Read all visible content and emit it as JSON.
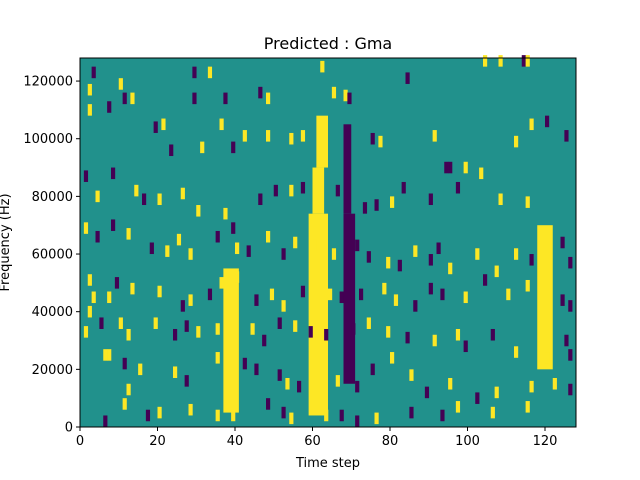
{
  "chart_data": {
    "type": "heatmap",
    "title": "Predicted : Gma",
    "xlabel": "Time step",
    "ylabel": "Frequency (Hz)",
    "xlim": [
      0,
      128
    ],
    "ylim": [
      0,
      128000
    ],
    "xticks": [
      0,
      20,
      40,
      60,
      80,
      100,
      120
    ],
    "yticks": [
      0,
      20000,
      40000,
      60000,
      80000,
      100000,
      120000
    ],
    "ytick_labels": [
      "0",
      "20000",
      "40000",
      "60000",
      "80000",
      "100000",
      "120000"
    ],
    "colormap": "viridis",
    "colors": {
      "background": "#21918c",
      "high": "#fde725",
      "low": "#440154"
    },
    "n_time_steps": 128,
    "n_freq_bins": 128,
    "bands": [
      {
        "x0": 59,
        "x1": 63,
        "y0": 4000,
        "y1": 74000,
        "level": "high"
      },
      {
        "x0": 60,
        "x1": 62,
        "y0": 74000,
        "y1": 90000,
        "level": "high"
      },
      {
        "x0": 61,
        "x1": 63,
        "y0": 90000,
        "y1": 108000,
        "level": "high"
      },
      {
        "x0": 68,
        "x1": 70,
        "y0": 15000,
        "y1": 74000,
        "level": "low"
      },
      {
        "x0": 68,
        "x1": 69,
        "y0": 74000,
        "y1": 105000,
        "level": "low"
      },
      {
        "x0": 37,
        "x1": 40,
        "y0": 5000,
        "y1": 55000,
        "level": "high"
      },
      {
        "x0": 118,
        "x1": 121,
        "y0": 20000,
        "y1": 70000,
        "level": "high"
      }
    ],
    "cells": [
      [
        3,
        123000,
        "low"
      ],
      [
        2,
        117000,
        "high"
      ],
      [
        10,
        119000,
        "high"
      ],
      [
        11,
        114000,
        "low"
      ],
      [
        13,
        114000,
        "high"
      ],
      [
        19,
        104000,
        "low"
      ],
      [
        21,
        105000,
        "high"
      ],
      [
        29,
        123000,
        "low"
      ],
      [
        33,
        123000,
        "high"
      ],
      [
        29,
        114000,
        "low"
      ],
      [
        37,
        114000,
        "low"
      ],
      [
        36,
        105000,
        "high"
      ],
      [
        46,
        116000,
        "low"
      ],
      [
        48,
        114000,
        "high"
      ],
      [
        62,
        125000,
        "high"
      ],
      [
        65,
        116000,
        "high"
      ],
      [
        68,
        115000,
        "high"
      ],
      [
        69,
        114000,
        "low"
      ],
      [
        84,
        121000,
        "low"
      ],
      [
        104,
        127000,
        "high"
      ],
      [
        108,
        127000,
        "high"
      ],
      [
        114,
        127000,
        "low"
      ],
      [
        115,
        127000,
        "high"
      ],
      [
        2,
        110000,
        "high"
      ],
      [
        7,
        111000,
        "low"
      ],
      [
        23,
        96000,
        "low"
      ],
      [
        31,
        97000,
        "high"
      ],
      [
        39,
        97000,
        "low"
      ],
      [
        42,
        101000,
        "high"
      ],
      [
        48,
        101000,
        "high"
      ],
      [
        54,
        100000,
        "high"
      ],
      [
        57,
        101000,
        "high"
      ],
      [
        75,
        100000,
        "low"
      ],
      [
        77,
        99000,
        "high"
      ],
      [
        91,
        101000,
        "high"
      ],
      [
        94,
        90000,
        "low"
      ],
      [
        95,
        90000,
        "low"
      ],
      [
        99,
        90000,
        "high"
      ],
      [
        112,
        99000,
        "high"
      ],
      [
        116,
        105000,
        "high"
      ],
      [
        120,
        106000,
        "low"
      ],
      [
        125,
        101000,
        "low"
      ],
      [
        1,
        87000,
        "low"
      ],
      [
        4,
        80000,
        "high"
      ],
      [
        8,
        88000,
        "low"
      ],
      [
        14,
        82000,
        "high"
      ],
      [
        16,
        79000,
        "low"
      ],
      [
        20,
        79000,
        "high"
      ],
      [
        26,
        81000,
        "high"
      ],
      [
        30,
        75000,
        "high"
      ],
      [
        37,
        74000,
        "high"
      ],
      [
        39,
        69000,
        "low"
      ],
      [
        46,
        79000,
        "low"
      ],
      [
        50,
        82000,
        "low"
      ],
      [
        54,
        82000,
        "high"
      ],
      [
        57,
        83000,
        "low"
      ],
      [
        66,
        82000,
        "low"
      ],
      [
        73,
        76000,
        "low"
      ],
      [
        76,
        77000,
        "low"
      ],
      [
        80,
        78000,
        "high"
      ],
      [
        83,
        83000,
        "low"
      ],
      [
        90,
        79000,
        "low"
      ],
      [
        97,
        83000,
        "low"
      ],
      [
        103,
        88000,
        "high"
      ],
      [
        108,
        79000,
        "high"
      ],
      [
        115,
        78000,
        "high"
      ],
      [
        1,
        69000,
        "high"
      ],
      [
        4,
        66000,
        "low"
      ],
      [
        8,
        70000,
        "low"
      ],
      [
        12,
        67000,
        "high"
      ],
      [
        18,
        62000,
        "low"
      ],
      [
        22,
        61000,
        "high"
      ],
      [
        25,
        65000,
        "high"
      ],
      [
        28,
        60000,
        "high"
      ],
      [
        35,
        66000,
        "low"
      ],
      [
        40,
        62000,
        "high"
      ],
      [
        43,
        61000,
        "low"
      ],
      [
        48,
        66000,
        "high"
      ],
      [
        52,
        60000,
        "low"
      ],
      [
        55,
        64000,
        "high"
      ],
      [
        60,
        63000,
        "high"
      ],
      [
        65,
        60000,
        "high"
      ],
      [
        71,
        63000,
        "low"
      ],
      [
        74,
        59000,
        "low"
      ],
      [
        79,
        57000,
        "high"
      ],
      [
        82,
        56000,
        "low"
      ],
      [
        86,
        61000,
        "high"
      ],
      [
        90,
        58000,
        "low"
      ],
      [
        92,
        62000,
        "low"
      ],
      [
        95,
        55000,
        "high"
      ],
      [
        102,
        60000,
        "high"
      ],
      [
        107,
        54000,
        "high"
      ],
      [
        112,
        60000,
        "high"
      ],
      [
        116,
        58000,
        "low"
      ],
      [
        124,
        64000,
        "low"
      ],
      [
        126,
        57000,
        "low"
      ],
      [
        2,
        51000,
        "high"
      ],
      [
        3,
        45000,
        "high"
      ],
      [
        7,
        45000,
        "high"
      ],
      [
        9,
        50000,
        "low"
      ],
      [
        13,
        48000,
        "high"
      ],
      [
        20,
        47000,
        "high"
      ],
      [
        26,
        42000,
        "low"
      ],
      [
        28,
        44000,
        "high"
      ],
      [
        33,
        46000,
        "low"
      ],
      [
        36,
        50000,
        "high"
      ],
      [
        40,
        52000,
        "high"
      ],
      [
        45,
        44000,
        "low"
      ],
      [
        49,
        46000,
        "high"
      ],
      [
        52,
        42000,
        "high"
      ],
      [
        57,
        47000,
        "low"
      ],
      [
        64,
        46000,
        "high"
      ],
      [
        67,
        45000,
        "low"
      ],
      [
        72,
        46000,
        "low"
      ],
      [
        78,
        48000,
        "high"
      ],
      [
        81,
        44000,
        "high"
      ],
      [
        86,
        42000,
        "low"
      ],
      [
        90,
        48000,
        "low"
      ],
      [
        93,
        46000,
        "low"
      ],
      [
        99,
        45000,
        "high"
      ],
      [
        104,
        51000,
        "low"
      ],
      [
        110,
        46000,
        "high"
      ],
      [
        115,
        49000,
        "high"
      ],
      [
        124,
        44000,
        "low"
      ],
      [
        126,
        42000,
        "low"
      ],
      [
        2,
        40000,
        "high"
      ],
      [
        1,
        33000,
        "high"
      ],
      [
        5,
        36000,
        "low"
      ],
      [
        10,
        36000,
        "high"
      ],
      [
        12,
        32000,
        "high"
      ],
      [
        19,
        36000,
        "high"
      ],
      [
        24,
        32000,
        "low"
      ],
      [
        27,
        35000,
        "low"
      ],
      [
        30,
        33000,
        "high"
      ],
      [
        35,
        34000,
        "high"
      ],
      [
        44,
        34000,
        "high"
      ],
      [
        47,
        30000,
        "low"
      ],
      [
        51,
        36000,
        "low"
      ],
      [
        55,
        35000,
        "high"
      ],
      [
        59,
        33000,
        "low"
      ],
      [
        63,
        32000,
        "low"
      ],
      [
        70,
        34000,
        "low"
      ],
      [
        74,
        36000,
        "high"
      ],
      [
        79,
        33000,
        "high"
      ],
      [
        84,
        31000,
        "low"
      ],
      [
        91,
        30000,
        "high"
      ],
      [
        97,
        32000,
        "high"
      ],
      [
        99,
        28000,
        "low"
      ],
      [
        106,
        32000,
        "low"
      ],
      [
        112,
        26000,
        "high"
      ],
      [
        120,
        24000,
        "high"
      ],
      [
        125,
        30000,
        "low"
      ],
      [
        126,
        25000,
        "low"
      ],
      [
        6,
        25000,
        "high"
      ],
      [
        7,
        25000,
        "high"
      ],
      [
        11,
        22000,
        "low"
      ],
      [
        15,
        20000,
        "high"
      ],
      [
        24,
        19000,
        "high"
      ],
      [
        27,
        16000,
        "low"
      ],
      [
        35,
        24000,
        "high"
      ],
      [
        42,
        22000,
        "low"
      ],
      [
        45,
        20000,
        "low"
      ],
      [
        51,
        18000,
        "low"
      ],
      [
        53,
        15000,
        "high"
      ],
      [
        56,
        14000,
        "low"
      ],
      [
        66,
        16000,
        "high"
      ],
      [
        71,
        14000,
        "low"
      ],
      [
        75,
        20000,
        "low"
      ],
      [
        80,
        24000,
        "high"
      ],
      [
        85,
        18000,
        "high"
      ],
      [
        89,
        12000,
        "low"
      ],
      [
        95,
        15000,
        "high"
      ],
      [
        102,
        10000,
        "low"
      ],
      [
        107,
        12000,
        "high"
      ],
      [
        116,
        14000,
        "high"
      ],
      [
        122,
        15000,
        "high"
      ],
      [
        126,
        13000,
        "low"
      ],
      [
        12,
        13000,
        "high"
      ],
      [
        11,
        8000,
        "high"
      ],
      [
        17,
        4000,
        "low"
      ],
      [
        20,
        5000,
        "high"
      ],
      [
        28,
        6000,
        "high"
      ],
      [
        35,
        4000,
        "high"
      ],
      [
        39,
        4000,
        "high"
      ],
      [
        48,
        8000,
        "low"
      ],
      [
        52,
        5000,
        "low"
      ],
      [
        54,
        3000,
        "high"
      ],
      [
        63,
        4000,
        "high"
      ],
      [
        67,
        4000,
        "low"
      ],
      [
        71,
        2000,
        "low"
      ],
      [
        76,
        3000,
        "high"
      ],
      [
        85,
        5000,
        "low"
      ],
      [
        93,
        4000,
        "low"
      ],
      [
        97,
        7000,
        "high"
      ],
      [
        106,
        5000,
        "high"
      ],
      [
        115,
        7000,
        "high"
      ],
      [
        6,
        2000,
        "low"
      ]
    ]
  }
}
